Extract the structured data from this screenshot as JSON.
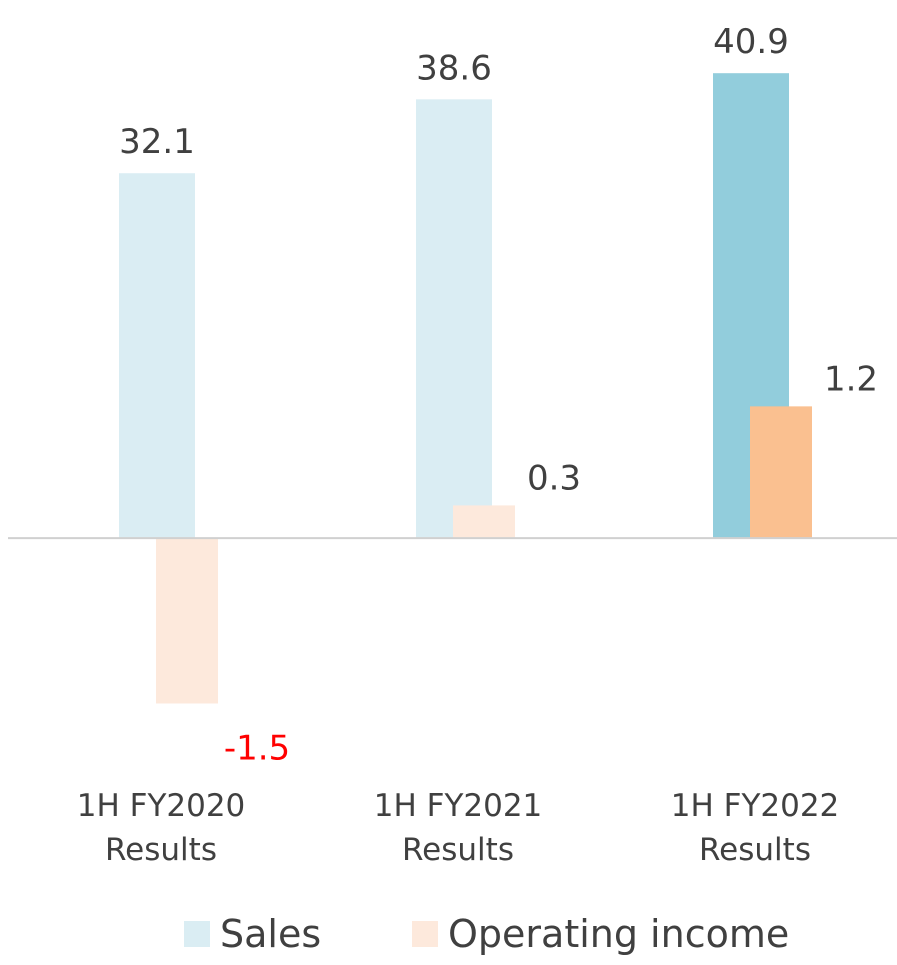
{
  "chart_data": {
    "type": "bar",
    "categories": [
      "1H FY2020 Results",
      "1H FY2021 Results",
      "1H FY2022 Results"
    ],
    "series": [
      {
        "name": "Sales",
        "color": "#daedf3",
        "colors": [
          "#daedf3",
          "#daedf3",
          "#92cddc"
        ],
        "values": [
          32.1,
          38.6,
          40.9
        ]
      },
      {
        "name": "Operating income",
        "color": "#fde9dc",
        "colors": [
          "#fde9dc",
          "#fde9dc",
          "#fac090"
        ],
        "values": [
          -1.5,
          0.3,
          1.2
        ],
        "axis": "y2"
      }
    ],
    "ylim": [
      -16,
      44.7
    ],
    "y2lim": [
      -1.65,
      4.62
    ],
    "negative_label_color": "#ff0000"
  }
}
